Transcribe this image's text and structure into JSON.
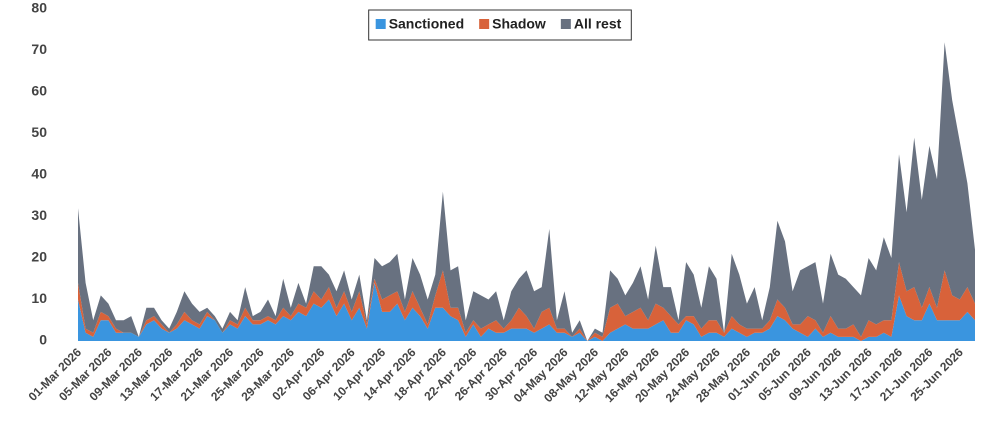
{
  "chart_data": {
    "type": "stacked-area",
    "categories": [
      "01-Mar 2026",
      null,
      null,
      null,
      "05-Mar 2026",
      null,
      null,
      null,
      "09-Mar 2026",
      null,
      null,
      null,
      "13-Mar 2026",
      null,
      null,
      null,
      "17-Mar 2026",
      null,
      null,
      null,
      "21-Mar 2026",
      null,
      null,
      null,
      "25-Mar 2026",
      null,
      null,
      null,
      "29-Mar 2026",
      null,
      null,
      null,
      "02-Apr 2026",
      null,
      null,
      null,
      "06-Apr 2026",
      null,
      null,
      null,
      "10-Apr 2026",
      null,
      null,
      null,
      "14-Apr 2026",
      null,
      null,
      null,
      "18-Apr 2026",
      null,
      null,
      null,
      "22-Apr 2026",
      null,
      null,
      null,
      "26-Apr 2026",
      null,
      null,
      null,
      "30-Apr 2026",
      null,
      null,
      null,
      "04-May 2026",
      null,
      null,
      null,
      "08-May 2026",
      null,
      null,
      null,
      "12-May 2026",
      null,
      null,
      null,
      "16-May 2026",
      null,
      null,
      null,
      "20-May 2026",
      null,
      null,
      null,
      "24-May 2026",
      null,
      null,
      null,
      "28-May 2026",
      null,
      null,
      null,
      "01-Jun 2026",
      null,
      null,
      null,
      "05-Jun 2026",
      null,
      null,
      null,
      "09-Jun 2026",
      null,
      null,
      null,
      "13-Jun 2026",
      null,
      null,
      null,
      "17-Jun 2026",
      null,
      null,
      null,
      "21-Jun 2026",
      null,
      null,
      null,
      "25-Jun 2026",
      null,
      null
    ],
    "series": [
      {
        "name": "Sanctioned",
        "color": "#3a95df",
        "values": [
          10,
          2,
          1,
          5,
          5,
          2,
          2,
          2,
          1,
          4,
          5,
          3,
          2,
          3,
          5,
          4,
          3,
          6,
          5,
          2,
          4,
          3,
          6,
          4,
          4,
          5,
          4,
          6,
          5,
          7,
          6,
          9,
          8,
          10,
          6,
          9,
          5,
          8,
          3,
          14,
          7,
          7,
          9,
          5,
          8,
          6,
          3,
          8,
          8,
          6,
          5,
          1,
          4,
          1,
          3,
          2,
          2,
          3,
          3,
          3,
          2,
          3,
          4,
          2,
          2,
          1,
          2,
          0,
          1,
          0,
          2,
          3,
          4,
          3,
          3,
          3,
          4,
          5,
          2,
          2,
          5,
          4,
          1,
          2,
          2,
          1,
          3,
          2,
          1,
          2,
          2,
          3,
          6,
          5,
          3,
          2,
          1,
          3,
          1,
          2,
          1,
          1,
          1,
          0,
          1,
          1,
          2,
          1,
          11,
          6,
          5,
          5,
          9,
          5,
          5,
          5,
          5,
          7,
          5
        ]
      },
      {
        "name": "Shadow",
        "color": "#d8623a",
        "values": [
          4,
          1,
          1,
          2,
          1,
          1,
          0,
          0,
          0,
          1,
          1,
          1,
          0,
          1,
          2,
          1,
          1,
          1,
          0,
          0,
          1,
          1,
          2,
          1,
          1,
          1,
          1,
          2,
          1,
          2,
          2,
          3,
          2,
          3,
          2,
          3,
          2,
          4,
          1,
          1,
          3,
          4,
          3,
          2,
          4,
          2,
          1,
          3,
          9,
          2,
          3,
          1,
          1,
          2,
          1,
          3,
          1,
          2,
          5,
          3,
          1,
          4,
          4,
          1,
          1,
          0,
          1,
          0,
          1,
          1,
          6,
          6,
          2,
          4,
          5,
          2,
          5,
          3,
          4,
          2,
          1,
          2,
          2,
          3,
          3,
          1,
          3,
          2,
          2,
          1,
          1,
          2,
          4,
          3,
          1,
          2,
          5,
          2,
          1,
          4,
          2,
          2,
          3,
          1,
          4,
          3,
          3,
          4,
          8,
          6,
          8,
          3,
          4,
          3,
          12,
          6,
          5,
          6,
          4
        ]
      },
      {
        "name": "All rest",
        "color": "#687180",
        "values": [
          18,
          11,
          3,
          4,
          3,
          2,
          3,
          4,
          0,
          3,
          2,
          1,
          1,
          3,
          5,
          4,
          3,
          1,
          1,
          1,
          2,
          1,
          5,
          1,
          2,
          4,
          1,
          7,
          2,
          5,
          1,
          6,
          8,
          3,
          4,
          5,
          3,
          4,
          1,
          5,
          8,
          8,
          9,
          3,
          8,
          8,
          6,
          5,
          19,
          9,
          10,
          3,
          7,
          8,
          6,
          7,
          2,
          7,
          7,
          11,
          9,
          6,
          19,
          2,
          9,
          1,
          2,
          0,
          1,
          1,
          9,
          6,
          5,
          7,
          10,
          5,
          14,
          5,
          7,
          1,
          13,
          10,
          5,
          13,
          10,
          0,
          15,
          12,
          6,
          10,
          2,
          8,
          19,
          16,
          8,
          13,
          12,
          14,
          7,
          15,
          13,
          12,
          9,
          10,
          15,
          13,
          20,
          15,
          26,
          19,
          36,
          26,
          34,
          31,
          55,
          47,
          38,
          25,
          13
        ]
      }
    ],
    "ylim": [
      0,
      80
    ],
    "yticks": [
      0,
      10,
      20,
      30,
      40,
      50,
      60,
      70,
      80
    ],
    "legend": "top"
  }
}
